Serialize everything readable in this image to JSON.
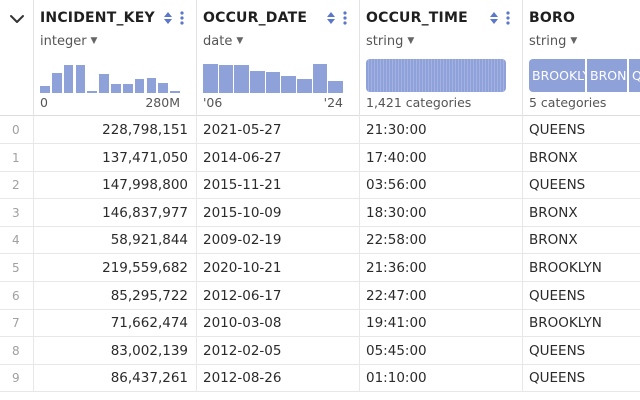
{
  "columns": [
    {
      "name": "INCIDENT_KEY",
      "type": "integer",
      "summary_left": "0",
      "summary_right": "280M",
      "histogram": [
        0.22,
        0.62,
        0.88,
        0.86,
        0.06,
        0.58,
        0.28,
        0.28,
        0.44,
        0.48,
        0.3,
        0.06
      ]
    },
    {
      "name": "OCCUR_DATE",
      "type": "date",
      "summary_left": "'06",
      "summary_right": "'24",
      "histogram": [
        0.92,
        0.88,
        0.86,
        0.7,
        0.66,
        0.52,
        0.44,
        0.92,
        0.38
      ]
    },
    {
      "name": "OCCUR_TIME",
      "type": "string",
      "summary_left": "1,421 categories"
    },
    {
      "name": "BORO",
      "type": "string",
      "summary_left": "5 categories",
      "categories": [
        "BROOKLYN",
        "BRONX",
        "QUEENS"
      ]
    }
  ],
  "rows": [
    {
      "index": "0",
      "key": "228,798,151",
      "date": "2021-05-27",
      "time": "21:30:00",
      "boro": "QUEENS"
    },
    {
      "index": "1",
      "key": "137,471,050",
      "date": "2014-06-27",
      "time": "17:40:00",
      "boro": "BRONX"
    },
    {
      "index": "2",
      "key": "147,998,800",
      "date": "2015-11-21",
      "time": "03:56:00",
      "boro": "QUEENS"
    },
    {
      "index": "3",
      "key": "146,837,977",
      "date": "2015-10-09",
      "time": "18:30:00",
      "boro": "BRONX"
    },
    {
      "index": "4",
      "key": "58,921,844",
      "date": "2009-02-19",
      "time": "22:58:00",
      "boro": "BRONX"
    },
    {
      "index": "5",
      "key": "219,559,682",
      "date": "2020-10-21",
      "time": "21:36:00",
      "boro": "BROOKLYN"
    },
    {
      "index": "6",
      "key": "85,295,722",
      "date": "2012-06-17",
      "time": "22:47:00",
      "boro": "QUEENS"
    },
    {
      "index": "7",
      "key": "71,662,474",
      "date": "2010-03-08",
      "time": "19:41:00",
      "boro": "BROOKLYN"
    },
    {
      "index": "8",
      "key": "83,002,139",
      "date": "2012-02-05",
      "time": "05:45:00",
      "boro": "QUEENS"
    },
    {
      "index": "9",
      "key": "86,437,261",
      "date": "2012-08-26",
      "time": "01:10:00",
      "boro": "QUEENS"
    }
  ],
  "colors": {
    "accent": "#8fa1d9",
    "icon": "#5b77c9"
  }
}
